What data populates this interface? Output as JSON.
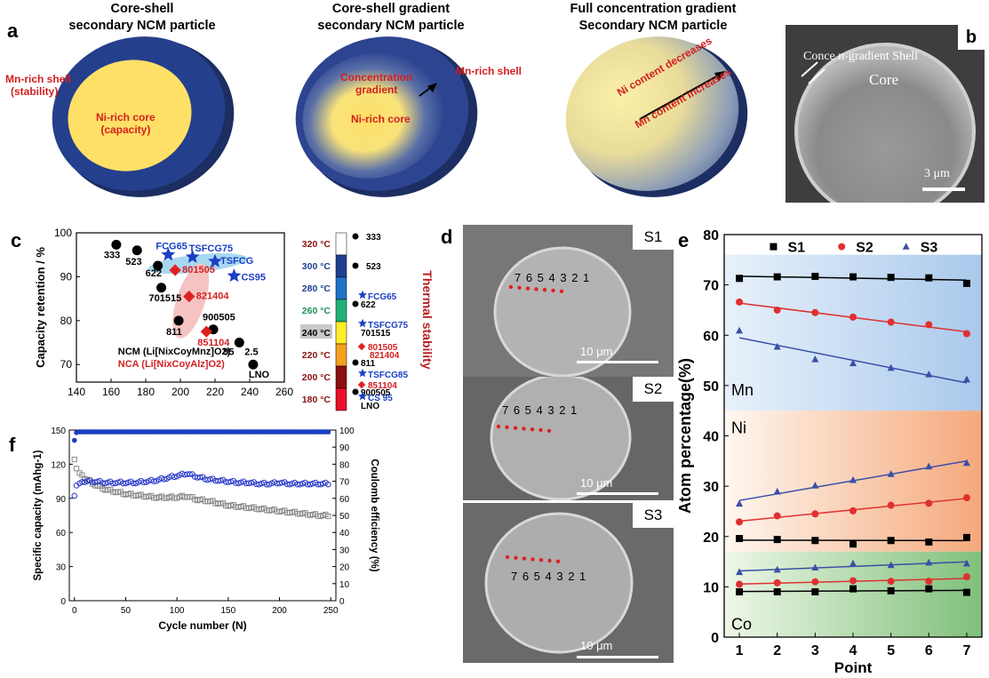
{
  "panel_a": {
    "label": "a",
    "particle1": {
      "title1": "Core-shell",
      "title2": "secondary NCM particle",
      "shell": "Mn-rich shell",
      "shell_sub": "(stability)",
      "core": "Ni-rich core",
      "core_sub": "(capacity)"
    },
    "particle2": {
      "title1": "Core-shell gradient",
      "title2": "secondary NCM particle",
      "grad1": "Concentration",
      "grad2": "gradient",
      "shell": "Mn-rich shell",
      "core": "Ni-rich core"
    },
    "particle3": {
      "title1": "Full concentration gradient",
      "title2": "Secondary NCM particle",
      "ni": "Ni content decreases",
      "mn": "Mn content increases"
    },
    "colors": {
      "shell": "#243f8c",
      "core": "#ffe066",
      "label": "#d32020"
    }
  },
  "panel_b": {
    "label": "b",
    "shell_text": "Conce n-gradient Shell",
    "core_text": "Core",
    "scale": "3 μm"
  },
  "panel_c": {
    "label": "c",
    "ylabel": "Capacity retention / %",
    "legend_ncm": "NCM (Li[NixCoyMnz]O2)",
    "legend_nca": "NCA (Li[NixCoyAlz]O2)",
    "thermal_title": "Thermal stability",
    "temps": [
      "320 °C",
      "300 °C",
      "280 °C",
      "260 °C",
      "240 °C",
      "220 °C",
      "200 °C",
      "180 °C"
    ],
    "right_labels": [
      "333",
      "523",
      "FCG65",
      "622",
      "TSFCG75",
      "701515",
      "801505",
      "821404",
      "811",
      "TSFCG85",
      "851104",
      "900505",
      "CS 95",
      "LNO"
    ]
  },
  "panel_d": {
    "label": "d",
    "s1": "S1",
    "s2": "S2",
    "s3": "S3",
    "points": "7 6 5 4 3 2 1",
    "scale": "10 μm"
  },
  "panel_e": {
    "label": "e",
    "mn": "Mn",
    "ni": "Ni",
    "co": "Co"
  },
  "panel_f": {
    "label": "f"
  },
  "chart_data": [
    {
      "id": "c",
      "type": "scatter",
      "xlabel": "",
      "ylabel": "Capacity retention / %",
      "xlim": [
        140,
        260
      ],
      "ylim": [
        66,
        100
      ],
      "xticks": [
        140,
        160,
        180,
        200,
        220,
        240,
        260
      ],
      "yticks": [
        70,
        80,
        90,
        100
      ],
      "series": [
        {
          "name": "NCM (Li[NixCoyMnz]O2)",
          "marker": "circle",
          "color": "#000000",
          "points": [
            {
              "x": 163,
              "y": 97.3,
              "label": "333"
            },
            {
              "x": 175,
              "y": 96,
              "label": "523"
            },
            {
              "x": 187,
              "y": 92.5,
              "label": "622"
            },
            {
              "x": 189,
              "y": 87.5,
              "label": "701515"
            },
            {
              "x": 199,
              "y": 80,
              "label": "811"
            },
            {
              "x": 219,
              "y": 78,
              "label": "900505"
            },
            {
              "x": 234,
              "y": 75,
              "label": "95"
            },
            {
              "x": 242,
              "y": 70,
              "label": "LNO"
            }
          ]
        },
        {
          "name": "NCA (Li[NixCoyAlz]O2)",
          "marker": "diamond",
          "color": "#e02020",
          "points": [
            {
              "x": 197,
              "y": 91.5,
              "label": "801505"
            },
            {
              "x": 205,
              "y": 85.5,
              "label": "821404"
            },
            {
              "x": 215,
              "y": 77.5,
              "label": "851104"
            }
          ]
        },
        {
          "name": "",
          "marker": "star",
          "color": "#1a3fc4",
          "points": [
            {
              "x": 193,
              "y": 95,
              "label": "FCG65"
            },
            {
              "x": 207,
              "y": 94.5,
              "label": "TSFCG75"
            },
            {
              "x": 220,
              "y": 93.5,
              "label": "TSFCG"
            },
            {
              "x": 231,
              "y": 90.2,
              "label": "CS95"
            }
          ]
        }
      ]
    },
    {
      "id": "e",
      "type": "scatter",
      "xlabel": "Point",
      "ylabel": "Atom percentage(%)",
      "x": [
        1,
        2,
        3,
        4,
        5,
        6,
        7
      ],
      "xlim": [
        0.6,
        7.4
      ],
      "ylim": [
        0,
        80
      ],
      "yticks": [
        0,
        10,
        20,
        30,
        40,
        50,
        60,
        70,
        80
      ],
      "legend": "top",
      "series": [
        {
          "name": "S1",
          "marker": "square",
          "color": "#000000",
          "group": "Mn",
          "values": [
            71.3,
            71.6,
            71.7,
            71.6,
            71.5,
            71.4,
            70.3
          ]
        },
        {
          "name": "S2",
          "marker": "circle",
          "color": "#e03030",
          "group": "Mn",
          "values": [
            66.6,
            65,
            64.5,
            63.6,
            62.6,
            62.1,
            60.3
          ]
        },
        {
          "name": "S3",
          "marker": "triangle",
          "color": "#3a4fa8",
          "group": "Mn",
          "values": [
            60.9,
            57.7,
            55.2,
            54.4,
            53.5,
            52.2,
            51.2
          ]
        },
        {
          "name": "S1",
          "marker": "square",
          "color": "#000000",
          "group": "Ni",
          "values": [
            19.6,
            19.4,
            19.2,
            18.5,
            19.2,
            18.9,
            19.8
          ]
        },
        {
          "name": "S2",
          "marker": "circle",
          "color": "#e03030",
          "group": "Ni",
          "values": [
            22.9,
            24.1,
            24.5,
            25.1,
            26.2,
            26.6,
            27.7
          ]
        },
        {
          "name": "S3",
          "marker": "triangle",
          "color": "#3a4fa8",
          "group": "Ni",
          "values": [
            26.5,
            28.9,
            30.1,
            31.2,
            32.4,
            33.9,
            34.6
          ]
        },
        {
          "name": "S1",
          "marker": "square",
          "color": "#000000",
          "group": "Co",
          "values": [
            9,
            9,
            9,
            9.6,
            9.2,
            9.6,
            8.9
          ]
        },
        {
          "name": "S2",
          "marker": "circle",
          "color": "#e03030",
          "group": "Co",
          "values": [
            10.5,
            10.8,
            11,
            11.2,
            11.1,
            11.1,
            12
          ]
        },
        {
          "name": "S3",
          "marker": "triangle",
          "color": "#3a4fa8",
          "group": "Co",
          "values": [
            12.9,
            13.4,
            13.8,
            14.6,
            14.3,
            14.8,
            14.6
          ]
        }
      ]
    },
    {
      "id": "f",
      "type": "scatter",
      "xlabel": "Cycle number (N)",
      "ylabel": "Specific capacity (mAhg-1)",
      "ylabel_right": "Coulomb efficiency (%)",
      "xlim": [
        -5,
        255
      ],
      "ylim": [
        0,
        150
      ],
      "ylim_right": [
        0,
        100
      ],
      "xticks": [
        0,
        50,
        100,
        150,
        200,
        250
      ],
      "yticks": [
        0,
        30,
        60,
        90,
        120,
        150
      ],
      "yticks_right": [
        0,
        10,
        20,
        30,
        40,
        50,
        60,
        70,
        80,
        90,
        100
      ],
      "series": [
        {
          "name": "",
          "axis": "left",
          "color": "#8a8a8a",
          "marker": "square-open",
          "x": [
            0,
            2,
            5,
            10,
            20,
            30,
            40,
            50,
            60,
            70,
            80,
            90,
            100,
            110,
            120,
            130,
            140,
            150,
            160,
            170,
            180,
            190,
            200,
            210,
            220,
            230,
            240,
            250
          ],
          "values": [
            125,
            117,
            113,
            108,
            102,
            98,
            96,
            94,
            93,
            92,
            91,
            91,
            91,
            92,
            89,
            88,
            86,
            84,
            83,
            82,
            81,
            80,
            79,
            78,
            77,
            76,
            75,
            75
          ]
        },
        {
          "name": "",
          "axis": "left",
          "color": "#2838c8",
          "marker": "circle-open",
          "x": [
            0,
            2,
            5,
            10,
            20,
            30,
            40,
            50,
            60,
            70,
            80,
            90,
            100,
            110,
            120,
            130,
            140,
            150,
            160,
            170,
            180,
            190,
            200,
            210,
            220,
            230,
            240,
            250
          ],
          "values": [
            93,
            102,
            104,
            105,
            105,
            104,
            104,
            104,
            104,
            105,
            106,
            108,
            110,
            112,
            109,
            107,
            106,
            105,
            104,
            104,
            103,
            103,
            104,
            103,
            103,
            103,
            103,
            103
          ]
        },
        {
          "name": "",
          "axis": "right",
          "color": "#1a3fc4",
          "marker": "circle",
          "x": [
            0,
            2,
            5,
            10,
            50,
            100,
            150,
            200,
            250
          ],
          "values": [
            94,
            98.5,
            99,
            99,
            99,
            99,
            99,
            99,
            99
          ]
        }
      ]
    }
  ]
}
